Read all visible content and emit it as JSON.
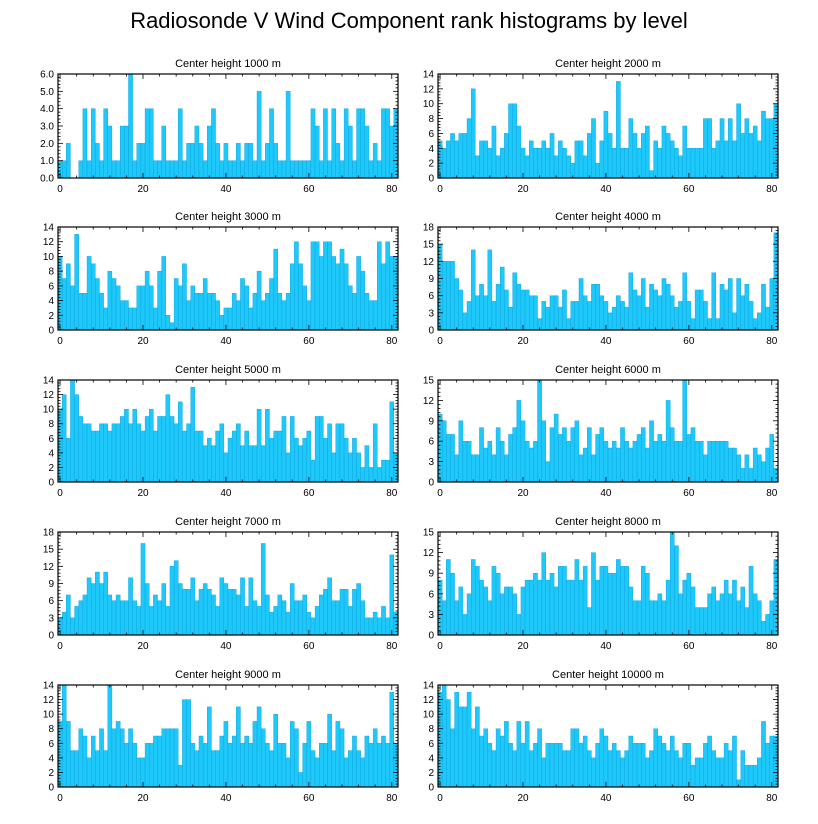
{
  "page_title": "Radiosonde V Wind Component rank histograms by level",
  "colors": {
    "bar": "#1EC8FA",
    "bar_edge": "#0AA0D8",
    "axis": "#000000"
  },
  "chart_data": [
    {
      "type": "bar",
      "title": "Center height 1000 m",
      "ylim": [
        0,
        6
      ],
      "yticks": [
        0,
        1,
        2,
        3,
        4,
        5,
        6
      ],
      "ytick_labels": [
        "0.0",
        "1.0",
        "2.0",
        "3.0",
        "4.0",
        "5.0",
        "6.0"
      ],
      "xlim": [
        -0.5,
        81.5
      ],
      "xticks": [
        0,
        20,
        40,
        60,
        80
      ],
      "xtick_labels": [
        "0",
        "20",
        "40",
        "60",
        "80"
      ],
      "values": [
        1,
        1,
        2,
        0,
        0,
        1,
        4,
        1,
        4,
        2,
        1,
        4,
        3,
        1,
        1,
        3,
        3,
        6,
        1,
        2,
        2,
        4,
        4,
        1,
        1,
        3,
        1,
        1,
        1,
        4,
        1,
        2,
        2,
        3,
        2,
        1,
        3,
        4,
        2,
        1,
        2,
        1,
        1,
        2,
        1,
        2,
        2,
        1,
        5,
        1,
        2,
        4,
        2,
        1,
        1,
        5,
        1,
        1,
        1,
        1,
        1,
        4,
        3,
        1,
        4,
        1,
        4,
        2,
        1,
        4,
        3,
        1,
        4,
        4,
        3,
        1,
        2,
        1,
        4,
        4,
        3,
        4
      ]
    },
    {
      "type": "bar",
      "title": "Center height 2000 m",
      "ylim": [
        0,
        14
      ],
      "yticks": [
        0,
        2,
        4,
        6,
        8,
        10,
        12,
        14
      ],
      "ytick_labels": [
        "0",
        "2",
        "4",
        "6",
        "8",
        "10",
        "12",
        "14"
      ],
      "xlim": [
        -0.5,
        81.5
      ],
      "xticks": [
        0,
        20,
        40,
        60,
        80
      ],
      "xtick_labels": [
        "0",
        "20",
        "40",
        "60",
        "80"
      ],
      "values": [
        5,
        4,
        5,
        6,
        5,
        6,
        6,
        8,
        12,
        3,
        5,
        5,
        4,
        7,
        3,
        4,
        6,
        10,
        10,
        7,
        4,
        3,
        5,
        4,
        4,
        5,
        4,
        6,
        3,
        5,
        4,
        3,
        2,
        5,
        5,
        3,
        6,
        8,
        2,
        5,
        9,
        6,
        4,
        13,
        4,
        4,
        8,
        6,
        4,
        6,
        7,
        1,
        5,
        4,
        7,
        6,
        5,
        4,
        3,
        7,
        4,
        4,
        4,
        4,
        8,
        8,
        4,
        5,
        8,
        5,
        8,
        5,
        10,
        6,
        8,
        6,
        7,
        5,
        9,
        8,
        8,
        10
      ]
    },
    {
      "type": "bar",
      "title": "Center height 3000 m",
      "ylim": [
        0,
        14
      ],
      "yticks": [
        0,
        2,
        4,
        6,
        8,
        10,
        12,
        14
      ],
      "ytick_labels": [
        "0",
        "2",
        "4",
        "6",
        "8",
        "10",
        "12",
        "14"
      ],
      "xlim": [
        -0.5,
        81.5
      ],
      "xticks": [
        0,
        20,
        40,
        60,
        80
      ],
      "xtick_labels": [
        "0",
        "20",
        "40",
        "60",
        "80"
      ],
      "values": [
        10,
        7,
        9,
        6,
        13,
        5,
        5,
        10,
        9,
        7,
        5,
        3,
        8,
        7,
        6,
        4,
        4,
        3,
        3,
        6,
        6,
        8,
        6,
        3,
        8,
        10,
        2,
        1,
        7,
        6,
        9,
        4,
        6,
        5,
        5,
        7,
        5,
        5,
        4,
        2,
        3,
        3,
        5,
        4,
        7,
        6,
        3,
        5,
        8,
        4,
        5,
        7,
        11,
        5,
        4,
        5,
        9,
        12,
        9,
        6,
        4,
        12,
        12,
        10,
        12,
        12,
        10,
        9,
        11,
        9,
        6,
        5,
        10,
        8,
        5,
        4,
        4,
        12,
        9,
        12,
        10,
        10
      ]
    },
    {
      "type": "bar",
      "title": "Center height 4000 m",
      "ylim": [
        0,
        18
      ],
      "yticks": [
        0,
        3,
        6,
        9,
        12,
        15,
        18
      ],
      "ytick_labels": [
        "0",
        "3",
        "6",
        "9",
        "12",
        "15",
        "18"
      ],
      "xlim": [
        -0.5,
        81.5
      ],
      "xticks": [
        0,
        20,
        40,
        60,
        80
      ],
      "xtick_labels": [
        "0",
        "20",
        "40",
        "60",
        "80"
      ],
      "values": [
        15,
        12,
        12,
        12,
        9,
        7,
        3,
        5,
        14,
        6,
        8,
        6,
        14,
        5,
        8,
        11,
        7,
        4,
        10,
        8,
        7,
        7,
        6,
        6,
        2,
        5,
        4,
        6,
        6,
        4,
        7,
        2,
        5,
        5,
        9,
        6,
        5,
        8,
        8,
        6,
        5,
        3,
        4,
        6,
        5,
        4,
        10,
        7,
        6,
        9,
        4,
        8,
        7,
        6,
        9,
        8,
        6,
        4,
        5,
        10,
        5,
        2,
        7,
        7,
        5,
        2,
        10,
        2,
        8,
        7,
        9,
        3,
        9,
        6,
        8,
        5,
        2,
        3,
        8,
        4,
        9,
        17
      ]
    },
    {
      "type": "bar",
      "title": "Center height 5000 m",
      "ylim": [
        0,
        14
      ],
      "yticks": [
        0,
        2,
        4,
        6,
        8,
        10,
        12,
        14
      ],
      "ytick_labels": [
        "0",
        "2",
        "4",
        "6",
        "8",
        "10",
        "12",
        "14"
      ],
      "xlim": [
        -0.5,
        81.5
      ],
      "xticks": [
        0,
        20,
        40,
        60,
        80
      ],
      "xtick_labels": [
        "0",
        "20",
        "40",
        "60",
        "80"
      ],
      "values": [
        10,
        12,
        6,
        14,
        12,
        9,
        8,
        8,
        7,
        7,
        8,
        8,
        7,
        8,
        8,
        9,
        10,
        8,
        10,
        8,
        7,
        9,
        10,
        7,
        9,
        9,
        12,
        9,
        8,
        11,
        7,
        8,
        13,
        7,
        7,
        5,
        6,
        5,
        7,
        8,
        4,
        6,
        7,
        8,
        5,
        7,
        5,
        5,
        10,
        5,
        10,
        6,
        7,
        7,
        9,
        4,
        9,
        6,
        5,
        6,
        7,
        3,
        9,
        9,
        6,
        8,
        4,
        8,
        8,
        6,
        4,
        6,
        4,
        2,
        5,
        2,
        8,
        2,
        3,
        3,
        11,
        4
      ]
    },
    {
      "type": "bar",
      "title": "Center height 6000 m",
      "ylim": [
        0,
        15
      ],
      "yticks": [
        0,
        3,
        6,
        9,
        12,
        15
      ],
      "ytick_labels": [
        "0",
        "3",
        "6",
        "9",
        "12",
        "15"
      ],
      "xlim": [
        -0.5,
        81.5
      ],
      "xticks": [
        0,
        20,
        40,
        60,
        80
      ],
      "xtick_labels": [
        "0",
        "20",
        "40",
        "60",
        "80"
      ],
      "values": [
        10,
        9,
        7,
        7,
        4,
        9,
        6,
        6,
        4,
        4,
        8,
        5,
        6,
        4,
        8,
        6,
        4,
        7,
        8,
        12,
        9,
        6,
        5,
        6,
        15,
        9,
        3,
        8,
        10,
        7,
        8,
        6,
        8,
        9,
        4,
        5,
        8,
        4,
        7,
        8,
        6,
        5,
        6,
        5,
        8,
        6,
        5,
        6,
        7,
        8,
        5,
        9,
        6,
        7,
        6,
        12,
        8,
        6,
        6,
        15,
        7,
        8,
        6,
        6,
        4,
        6,
        6,
        6,
        6,
        6,
        5,
        5,
        4,
        2,
        4,
        2,
        5,
        4,
        3,
        5,
        7,
        2
      ]
    },
    {
      "type": "bar",
      "title": "Center height 7000 m",
      "ylim": [
        0,
        18
      ],
      "yticks": [
        0,
        3,
        6,
        9,
        12,
        15,
        18
      ],
      "ytick_labels": [
        "0",
        "3",
        "6",
        "9",
        "12",
        "15",
        "18"
      ],
      "xlim": [
        -0.5,
        81.5
      ],
      "xticks": [
        0,
        20,
        40,
        60,
        80
      ],
      "xtick_labels": [
        "0",
        "20",
        "40",
        "60",
        "80"
      ],
      "values": [
        3,
        4,
        7,
        3,
        5,
        6,
        7,
        10,
        9,
        11,
        9,
        11,
        7,
        6,
        7,
        6,
        6,
        10,
        6,
        5,
        16,
        9,
        5,
        7,
        6,
        9,
        5,
        12,
        13,
        9,
        8,
        8,
        10,
        6,
        8,
        9,
        8,
        7,
        5,
        10,
        9,
        8,
        8,
        7,
        10,
        5,
        10,
        6,
        5,
        16,
        7,
        4,
        5,
        7,
        6,
        4,
        9,
        6,
        6,
        7,
        4,
        3,
        5,
        7,
        8,
        10,
        6,
        6,
        8,
        8,
        5,
        8,
        9,
        6,
        3,
        3,
        4,
        3,
        5,
        3,
        14,
        4
      ]
    },
    {
      "type": "bar",
      "title": "Center height 8000 m",
      "ylim": [
        0,
        15
      ],
      "yticks": [
        0,
        3,
        6,
        9,
        12,
        15
      ],
      "ytick_labels": [
        "0",
        "3",
        "6",
        "9",
        "12",
        "15"
      ],
      "xlim": [
        -0.5,
        81.5
      ],
      "xticks": [
        0,
        20,
        40,
        60,
        80
      ],
      "xtick_labels": [
        "0",
        "20",
        "40",
        "60",
        "80"
      ],
      "values": [
        8,
        5,
        11,
        9,
        5,
        7,
        3,
        6,
        11,
        10,
        8,
        7,
        5,
        10,
        9,
        6,
        7,
        7,
        6,
        3,
        7,
        8,
        8,
        9,
        8,
        12,
        8,
        9,
        7,
        10,
        10,
        8,
        8,
        11,
        8,
        10,
        4,
        12,
        8,
        10,
        10,
        9,
        9,
        11,
        10,
        10,
        7,
        5,
        5,
        10,
        9,
        5,
        5,
        6,
        5,
        8,
        15,
        13,
        6,
        8,
        9,
        7,
        4,
        4,
        4,
        6,
        7,
        5,
        6,
        8,
        6,
        8,
        5,
        7,
        4,
        10,
        6,
        5,
        2,
        3,
        5,
        11
      ]
    },
    {
      "type": "bar",
      "title": "Center height 9000 m",
      "ylim": [
        0,
        14
      ],
      "yticks": [
        0,
        2,
        4,
        6,
        8,
        10,
        12,
        14
      ],
      "ytick_labels": [
        "0",
        "2",
        "4",
        "6",
        "8",
        "10",
        "12",
        "14"
      ],
      "xlim": [
        -0.5,
        81.5
      ],
      "xticks": [
        0,
        20,
        40,
        60,
        80
      ],
      "xtick_labels": [
        "0",
        "20",
        "40",
        "60",
        "80"
      ],
      "values": [
        9,
        14,
        9,
        5,
        5,
        8,
        7,
        4,
        7,
        5,
        8,
        5,
        14,
        8,
        9,
        8,
        6,
        8,
        6,
        4,
        4,
        6,
        6,
        7,
        7,
        8,
        8,
        8,
        8,
        3,
        12,
        12,
        6,
        5,
        7,
        6,
        11,
        5,
        5,
        7,
        9,
        6,
        7,
        11,
        6,
        7,
        6,
        9,
        11,
        8,
        6,
        5,
        10,
        6,
        6,
        4,
        9,
        8,
        2,
        6,
        9,
        5,
        4,
        6,
        6,
        10,
        5,
        9,
        8,
        4,
        5,
        7,
        5,
        4,
        7,
        6,
        8,
        6,
        7,
        6,
        13,
        6
      ]
    },
    {
      "type": "bar",
      "title": "Center height 10000 m",
      "ylim": [
        0,
        14
      ],
      "yticks": [
        0,
        2,
        4,
        6,
        8,
        10,
        12,
        14
      ],
      "ytick_labels": [
        "0",
        "2",
        "4",
        "6",
        "8",
        "10",
        "12",
        "14"
      ],
      "xlim": [
        -0.5,
        81.5
      ],
      "xticks": [
        0,
        20,
        40,
        60,
        80
      ],
      "xtick_labels": [
        "0",
        "20",
        "40",
        "60",
        "80"
      ],
      "values": [
        13,
        14,
        12,
        8,
        13,
        11,
        11,
        13,
        8,
        11,
        7,
        8,
        6,
        5,
        8,
        7,
        9,
        6,
        5,
        9,
        6,
        9,
        5,
        6,
        8,
        4,
        6,
        6,
        6,
        6,
        5,
        5,
        8,
        8,
        6,
        7,
        5,
        4,
        6,
        8,
        7,
        5,
        6,
        5,
        4,
        5,
        7,
        6,
        6,
        6,
        4,
        5,
        8,
        7,
        6,
        5,
        7,
        5,
        4,
        6,
        6,
        3,
        4,
        4,
        6,
        7,
        5,
        4,
        4,
        6,
        5,
        7,
        1,
        5,
        3,
        3,
        3,
        4,
        9,
        6,
        7,
        7
      ]
    }
  ]
}
